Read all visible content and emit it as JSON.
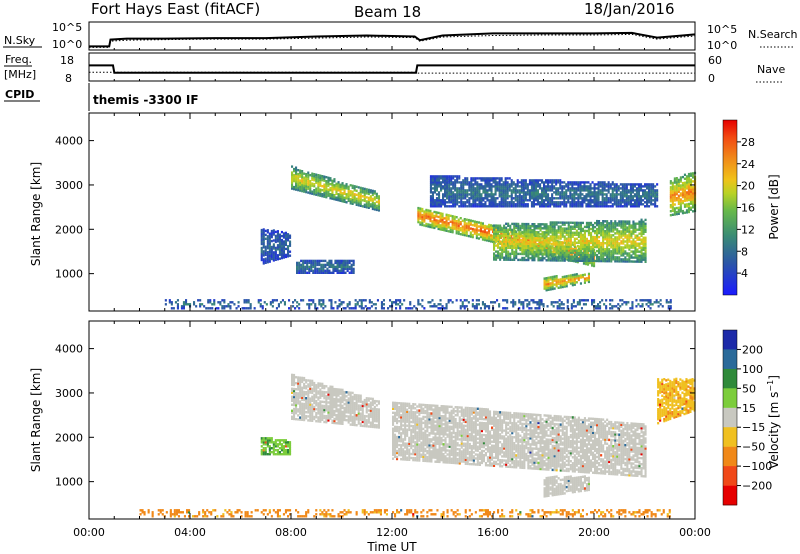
{
  "header": {
    "radar": "Fort Hays East (fitACF)",
    "beam": "Beam 18",
    "date": "18/Jan/2016"
  },
  "labels": {
    "nsky": "N.Sky",
    "nsearch": "N.Search",
    "freq": "Freq.",
    "freq_unit": "[MHz]",
    "nave": "Nave",
    "cpid": "CPID",
    "mode": "themis -3300 IF"
  },
  "strip_ticks": {
    "noise_left": [
      "10^5",
      "10^0"
    ],
    "noise_right": [
      "10^5",
      "10^0"
    ],
    "freq_left": [
      "18",
      "8"
    ],
    "nave_right": [
      "60",
      "0"
    ]
  },
  "chart_data": [
    {
      "type": "line",
      "name": "noise",
      "x": [
        0,
        0.8,
        0.85,
        1.5,
        3,
        5,
        7,
        9,
        11,
        12.9,
        13.1,
        14,
        16,
        18,
        20,
        21.5,
        22.5,
        23.5,
        24
      ],
      "series": [
        {
          "name": "N.Sky",
          "values": [
            0.5,
            0.5,
            1.8,
            2.0,
            2.0,
            2.1,
            2.1,
            2.4,
            2.6,
            2.4,
            1.7,
            2.6,
            3.0,
            3.0,
            3.0,
            3.1,
            2.2,
            2.6,
            2.8
          ]
        },
        {
          "name": "N.Search",
          "values": [
            0.3,
            0.3,
            1.5,
            1.7,
            1.8,
            1.9,
            1.9,
            2.1,
            2.3,
            2.2,
            1.5,
            2.3,
            2.6,
            2.7,
            2.7,
            2.8,
            1.9,
            2.3,
            2.5
          ]
        }
      ],
      "ylim": [
        0,
        5
      ]
    },
    {
      "type": "line",
      "name": "frequency",
      "x": [
        0,
        0.95,
        1.0,
        12.95,
        13.0,
        24
      ],
      "series": [
        {
          "name": "Freq.",
          "values": [
            13.6,
            13.6,
            10.8,
            10.8,
            13.6,
            13.6
          ]
        },
        {
          "name": "Nave",
          "values": [
            18,
            18,
            18,
            18,
            16,
            16
          ]
        }
      ],
      "ylim_left": [
        8,
        18
      ],
      "ylim_right": [
        0,
        60
      ]
    },
    {
      "type": "heatmap",
      "title": "",
      "xlabel": "",
      "ylabel": "Slant Range [km]",
      "xlim": [
        0,
        24
      ],
      "ylim": [
        180,
        4600
      ],
      "xticks": [
        "00:00",
        "04:00",
        "08:00",
        "12:00",
        "16:00",
        "20:00",
        "00:00"
      ],
      "yticks": [
        1000,
        2000,
        3000,
        4000
      ],
      "colorbar_label": "Power [dB]",
      "colorbar_ticks": [
        4,
        8,
        12,
        16,
        20,
        24,
        28
      ],
      "clim": [
        0,
        32
      ],
      "regions": [
        {
          "t": [
            8.0,
            11.5
          ],
          "lo": [
            2900,
            2400
          ],
          "hi": [
            3400,
            2800
          ],
          "v": 18
        },
        {
          "t": [
            13.0,
            20.0
          ],
          "lo": [
            2100,
            1150
          ],
          "hi": [
            2500,
            1550
          ],
          "v": 24
        },
        {
          "t": [
            16.0,
            22.0
          ],
          "lo": [
            1300,
            1250
          ],
          "hi": [
            2100,
            2200
          ],
          "v": 18
        },
        {
          "t": [
            23.0,
            24.0
          ],
          "lo": [
            2300,
            2400
          ],
          "hi": [
            3100,
            3300
          ],
          "v": 22
        },
        {
          "t": [
            18.0,
            19.8
          ],
          "lo": [
            600,
            800
          ],
          "hi": [
            900,
            1000
          ],
          "v": 22
        },
        {
          "t": [
            6.8,
            8.0
          ],
          "lo": [
            1200,
            1400
          ],
          "hi": [
            2000,
            1900
          ],
          "v": 7
        },
        {
          "t": [
            8.2,
            10.5
          ],
          "lo": [
            1000,
            1000
          ],
          "hi": [
            1300,
            1300
          ],
          "v": 8
        },
        {
          "t": [
            13.5,
            22.5
          ],
          "lo": [
            2500,
            2500
          ],
          "hi": [
            3200,
            3000
          ],
          "v": 8
        },
        {
          "t": [
            3.0,
            23.0
          ],
          "lo": [
            200,
            200
          ],
          "hi": [
            400,
            400
          ],
          "v": 8
        }
      ]
    },
    {
      "type": "heatmap",
      "title": "",
      "xlabel": "Time UT",
      "ylabel": "Slant Range [km]",
      "xlim": [
        0,
        24
      ],
      "ylim": [
        180,
        4600
      ],
      "xticks": [
        "00:00",
        "04:00",
        "08:00",
        "12:00",
        "16:00",
        "20:00",
        "00:00"
      ],
      "yticks": [
        1000,
        2000,
        3000,
        4000
      ],
      "colorbar_label": "Velocity [m s^-1]",
      "colorbar_ticks": [
        200,
        100,
        50,
        15,
        -15,
        -50,
        -100,
        -200
      ],
      "clim": [
        -250,
        250
      ],
      "regions": [
        {
          "t": [
            8.0,
            11.5
          ],
          "lo": [
            2400,
            2200
          ],
          "hi": [
            3400,
            2800
          ],
          "v": 0
        },
        {
          "t": [
            12.0,
            22.0
          ],
          "lo": [
            1500,
            1100
          ],
          "hi": [
            2800,
            2300
          ],
          "v": 0
        },
        {
          "t": [
            18.0,
            19.8
          ],
          "lo": [
            650,
            800
          ],
          "hi": [
            1100,
            1100
          ],
          "v": 0
        },
        {
          "t": [
            22.5,
            24.0
          ],
          "lo": [
            2300,
            2600
          ],
          "hi": [
            3300,
            3300
          ],
          "v": -40
        },
        {
          "t": [
            6.8,
            8.0
          ],
          "lo": [
            1600,
            1600
          ],
          "hi": [
            2000,
            1900
          ],
          "v": 40
        },
        {
          "t": [
            2.0,
            23.0
          ],
          "lo": [
            200,
            200
          ],
          "hi": [
            350,
            350
          ],
          "v": -60
        }
      ]
    }
  ]
}
